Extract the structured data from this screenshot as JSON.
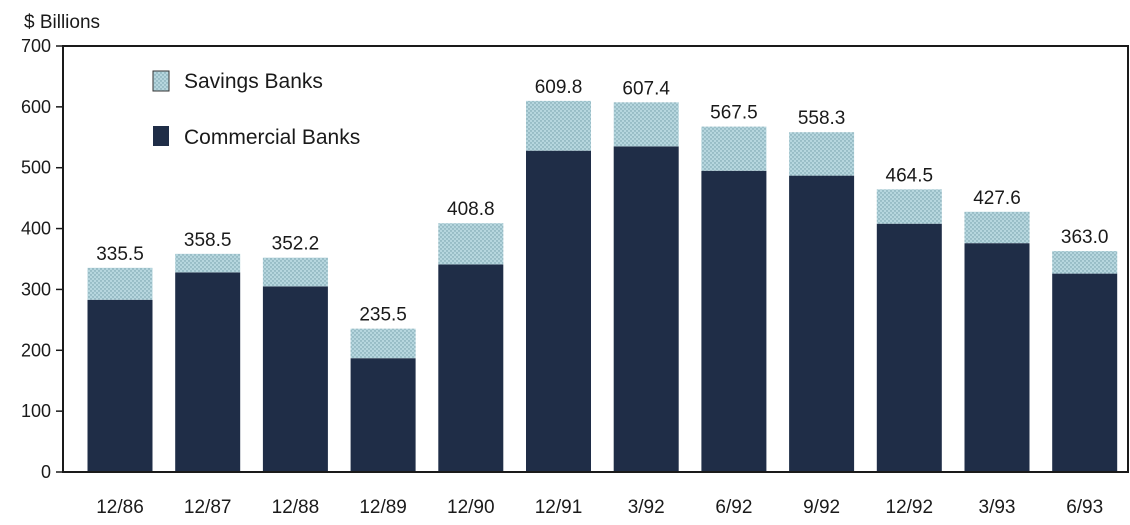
{
  "chart_data": {
    "type": "bar",
    "stacked": true,
    "ylabel": "$ Billions",
    "ylim": [
      0,
      700
    ],
    "yticks": [
      "0",
      "100",
      "200",
      "300",
      "400",
      "500",
      "600",
      "700"
    ],
    "categories": [
      "12/86",
      "12/87",
      "12/88",
      "12/89",
      "12/90",
      "12/91",
      "3/92",
      "6/92",
      "9/92",
      "12/92",
      "3/93",
      "6/93"
    ],
    "series": [
      {
        "name": "Commercial Banks",
        "color": "#1f2d47",
        "values": [
          283,
          328,
          305,
          187,
          341,
          528,
          535,
          495,
          487,
          408,
          376,
          326
        ]
      },
      {
        "name": "Savings Banks",
        "color": "#a9cdd6",
        "values": [
          52.5,
          30.5,
          47.2,
          48.5,
          67.8,
          81.8,
          72.4,
          72.5,
          71.3,
          56.5,
          51.6,
          37.0
        ]
      }
    ],
    "totals": [
      "335.5",
      "358.5",
      "352.2",
      "235.5",
      "408.8",
      "609.8",
      "607.4",
      "567.5",
      "558.3",
      "464.5",
      "427.6",
      "363.0"
    ],
    "legend": {
      "placement": "top-left",
      "items": [
        {
          "label": "Savings Banks",
          "color": "#a9cdd6"
        },
        {
          "label": "Commercial Banks",
          "color": "#1f2d47"
        }
      ]
    },
    "grid": false
  }
}
